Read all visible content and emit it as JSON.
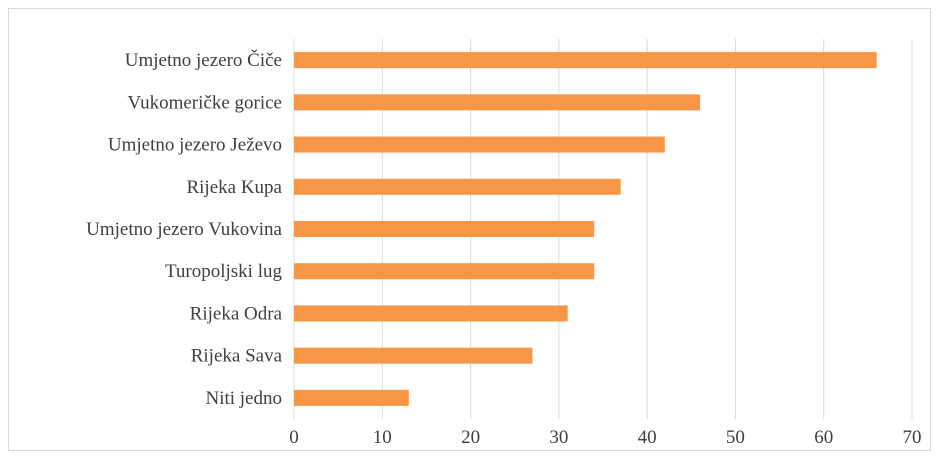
{
  "chart_data": {
    "type": "bar",
    "orientation": "horizontal",
    "title": "",
    "xlabel": "",
    "ylabel": "",
    "categories": [
      "Umjetno jezero Čiče",
      "Vukomeričke gorice",
      "Umjetno jezero Ježevo",
      "Rijeka Kupa",
      "Umjetno jezero Vukovina",
      "Turopoljski lug",
      "Rijeka Odra",
      "Rijeka Sava",
      "Niti jedno"
    ],
    "values": [
      66,
      46,
      42,
      37,
      34,
      34,
      31,
      27,
      13
    ],
    "xlim": [
      0,
      70
    ],
    "x_ticks": [
      0,
      10,
      20,
      30,
      40,
      50,
      60,
      70
    ],
    "x_tick_labels": [
      "0",
      "10",
      "20",
      "30",
      "40",
      "50",
      "60",
      "70"
    ],
    "grid": "vertical",
    "legend": "none",
    "bar_color": "#f79646",
    "grid_color": "#d9d9d9",
    "text_color": "#404040"
  }
}
